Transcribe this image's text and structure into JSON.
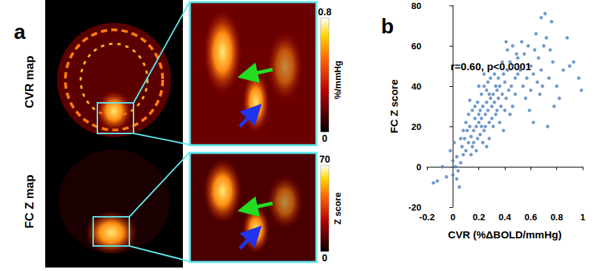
{
  "panel_a": {
    "label": "a",
    "rows": [
      {
        "label": "CVR map",
        "colorbar": {
          "min": 0,
          "max": 0.8,
          "ticks": [
            0,
            0.8
          ],
          "unit": "%/mmHg"
        }
      },
      {
        "label": "FC Z map",
        "colorbar": {
          "min": 0,
          "max": 70,
          "ticks": [
            0,
            70
          ],
          "unit": "Z score"
        }
      }
    ]
  },
  "chart_data": {
    "type": "scatter",
    "panel_label": "b",
    "annotation": "r=0.60, p<0.0001",
    "x_label": "CVR (%ΔBOLD/mmHg)",
    "y_label": "FC Z score",
    "color": "#4f81bd",
    "marker": "circle",
    "grid": false,
    "xlim": [
      -0.2,
      1
    ],
    "xticks": [
      -0.2,
      0,
      0.2,
      0.4,
      0.6,
      0.8,
      1
    ],
    "ylim": [
      -20,
      80
    ],
    "yticks": [
      -20,
      0,
      20,
      40,
      60,
      80
    ],
    "x": [
      -0.15,
      -0.12,
      -0.05,
      0.0,
      0.02,
      0.0,
      0.03,
      -0.02,
      0.05,
      0.04,
      -0.08,
      0.01,
      0.06,
      0.08,
      0.03,
      0.07,
      0.09,
      0.1,
      0.12,
      0.11,
      0.13,
      0.14,
      0.1,
      0.15,
      0.16,
      0.17,
      0.12,
      0.18,
      0.19,
      0.2,
      0.15,
      0.17,
      0.2,
      0.08,
      0.06,
      0.14,
      0.19,
      0.13,
      0.16,
      0.18,
      0.21,
      0.22,
      0.23,
      0.24,
      0.25,
      0.26,
      0.27,
      0.28,
      0.29,
      0.3,
      0.22,
      0.24,
      0.26,
      0.28,
      0.3,
      0.31,
      0.32,
      0.33,
      0.34,
      0.35,
      0.21,
      0.23,
      0.25,
      0.27,
      0.29,
      0.31,
      0.33,
      0.35,
      0.2,
      0.24,
      0.26,
      0.28,
      0.32,
      0.34,
      0.22,
      0.36,
      0.37,
      0.38,
      0.39,
      0.4,
      0.41,
      0.42,
      0.43,
      0.44,
      0.45,
      0.46,
      0.47,
      0.48,
      0.49,
      0.5,
      0.36,
      0.38,
      0.4,
      0.42,
      0.44,
      0.46,
      0.48,
      0.5,
      0.39,
      0.41,
      0.52,
      0.54,
      0.55,
      0.57,
      0.58,
      0.6,
      0.62,
      0.63,
      0.65,
      0.66,
      0.68,
      0.7,
      0.56,
      0.6,
      0.64,
      0.69,
      0.53,
      0.59,
      0.67,
      0.71,
      0.72,
      0.74,
      0.75,
      0.77,
      0.8,
      0.82,
      0.85,
      0.88,
      0.9,
      0.93,
      0.97,
      0.99,
      0.78,
      0.73,
      0.62,
      0.76,
      0.68
    ],
    "values": [
      -8,
      -7,
      -5,
      -4,
      0,
      3,
      5,
      8,
      -10,
      -2,
      0,
      12,
      2,
      6,
      -6,
      10,
      14,
      8,
      12,
      18,
      20,
      15,
      22,
      10,
      18,
      24,
      26,
      20,
      14,
      22,
      28,
      30,
      26,
      18,
      14,
      6,
      32,
      33,
      12,
      8,
      28,
      24,
      30,
      18,
      26,
      32,
      28,
      22,
      34,
      30,
      36,
      40,
      38,
      36,
      24,
      36,
      32,
      40,
      28,
      34,
      16,
      12,
      20,
      42,
      44,
      20,
      26,
      44,
      40,
      46,
      10,
      14,
      46,
      38,
      20,
      40,
      30,
      36,
      46,
      42,
      34,
      48,
      38,
      52,
      40,
      30,
      50,
      44,
      56,
      46,
      22,
      52,
      28,
      58,
      26,
      60,
      36,
      54,
      18,
      62,
      48,
      40,
      56,
      44,
      60,
      50,
      46,
      58,
      42,
      54,
      48,
      60,
      34,
      38,
      66,
      40,
      62,
      28,
      36,
      76,
      64,
      44,
      58,
      52,
      40,
      34,
      48,
      64,
      50,
      52,
      44,
      38,
      30,
      20,
      22,
      72,
      74
    ]
  }
}
